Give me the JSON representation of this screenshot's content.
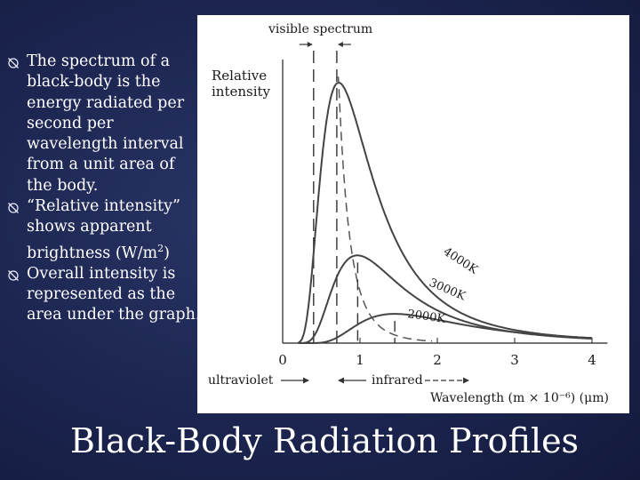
{
  "slide": {
    "title": "Black-Body Radiation Profiles",
    "bullets": [
      {
        "text": "The spectrum of a black-body is the energy radiated per second per wavelength interval from a unit area of the body.",
        "sup": "",
        "after": ""
      },
      {
        "text": "“Relative intensity” shows apparent brightness (W/m",
        "sup": "2",
        "after": ")"
      },
      {
        "text": "Overall intensity is represented as the area under the graph.",
        "sup": "",
        "after": ""
      }
    ],
    "bullet_icon": "crossed-circle-bullet-icon"
  },
  "chart_data": {
    "type": "line",
    "ylabel": [
      "Relative",
      "intensity"
    ],
    "xlabel": "Wavelength (m × 10⁻⁶) (μm)",
    "xlim": [
      0,
      4.2
    ],
    "ylim": [
      0,
      1
    ],
    "x_ticks": [
      0,
      1,
      2,
      3,
      4
    ],
    "x_tick_labels": [
      "0",
      "1",
      "2",
      "3",
      "4"
    ],
    "grid": false,
    "annotations": {
      "visible_spectrum": "visible spectrum",
      "ultraviolet": "ultraviolet",
      "infrared": "infrared",
      "visible_range": [
        0.4,
        0.7
      ]
    },
    "series": [
      {
        "name": "4000K",
        "temperature": 4000,
        "peak_x": 0.72,
        "peak_y": 0.98
      },
      {
        "name": "3000K",
        "temperature": 3000,
        "peak_x": 0.97,
        "peak_y": 0.33
      },
      {
        "name": "2000K",
        "temperature": 2000,
        "peak_x": 1.45,
        "peak_y": 0.11
      }
    ],
    "peak_locus": {
      "style": "dashed"
    }
  }
}
